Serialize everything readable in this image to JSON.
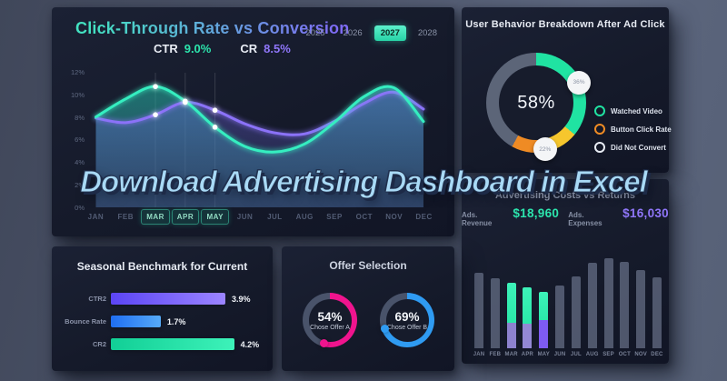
{
  "overlay": {
    "text": "Download Advertising Dashboard in Excel"
  },
  "panels": {
    "ctr_conversion": {
      "title": "Click-Through Rate vs Conversion",
      "years": [
        "2025",
        "2026",
        "2027",
        "2028"
      ],
      "selected_year": "2027",
      "stats": [
        {
          "label": "CTR",
          "value": "9.0%",
          "color": "#2ce5ad"
        },
        {
          "label": "CR",
          "value": "8.5%",
          "color": "#8f76f9"
        }
      ],
      "y_ticks": [
        "12%",
        "10%",
        "8%",
        "6%",
        "4%",
        "2%",
        "0%"
      ],
      "months": [
        "JAN",
        "FEB",
        "MAR",
        "APR",
        "MAY",
        "JUN",
        "JUL",
        "AUG",
        "SEP",
        "OCT",
        "NOV",
        "DEC"
      ],
      "highlighted_months": [
        "MAR",
        "APR",
        "MAY"
      ]
    },
    "behavior": {
      "title": "User Behavior Breakdown After Ad Click",
      "center_value": "58%",
      "legend": [
        {
          "label": "Watched Video",
          "color": "#20e3a2"
        },
        {
          "label": "Button Click Rate",
          "color": "#ef8b24"
        },
        {
          "label": "Did Not Convert",
          "color": "#e8ecf4"
        }
      ]
    },
    "costs": {
      "title": "Advertising Costs vs Returns",
      "stats": [
        {
          "label": "Ads. Revenue",
          "value": "$18,960",
          "color": "#2ce5ad"
        },
        {
          "label": "Ads. Expenses",
          "value": "$16,030",
          "color": "#8f76f9"
        }
      ]
    },
    "seasonal": {
      "title": "Seasonal Benchmark for Current"
    },
    "offer": {
      "title": "Offer Selection"
    }
  },
  "chart_data": [
    {
      "type": "line",
      "title": "Click-Through Rate vs Conversion",
      "x": [
        "JAN",
        "FEB",
        "MAR",
        "APR",
        "MAY",
        "JUN",
        "JUL",
        "AUG",
        "SEP",
        "OCT",
        "NOV",
        "DEC"
      ],
      "ylabel": "percent",
      "ylim": [
        0,
        12
      ],
      "grid": "vertical-on-marked-months-only",
      "legend_position": "top-left",
      "marked_months": [
        "MAR",
        "APR",
        "MAY"
      ],
      "series": [
        {
          "name": "CTR",
          "color": "#35eec0",
          "values": [
            8.0,
            9.6,
            10.7,
            9.4,
            7.1,
            5.4,
            4.9,
            5.6,
            7.5,
            9.8,
            10.6,
            7.6
          ]
        },
        {
          "name": "CR",
          "color": "#8b72f8",
          "values": [
            7.9,
            7.5,
            8.2,
            9.3,
            8.6,
            7.4,
            6.6,
            6.5,
            7.6,
            9.2,
            10.2,
            8.7
          ]
        }
      ]
    },
    {
      "type": "pie",
      "title": "User Behavior Breakdown After Ad Click",
      "center_label": "58%",
      "slices": [
        {
          "label": "Watched Video",
          "value": 36,
          "badge": "36%",
          "color": "#20e3a2"
        },
        {
          "label": "Button Click Rate",
          "value": 22,
          "badge": "22%",
          "color": "#ef8b24",
          "color2": "#f6c62d"
        },
        {
          "label": "Did Not Convert",
          "value": 42,
          "badge": null,
          "color": "#5c6578"
        }
      ]
    },
    {
      "type": "bar",
      "title": "Advertising Costs vs Returns",
      "categories": [
        "JAN",
        "FEB",
        "MAR",
        "APR",
        "MAY",
        "JUN",
        "JUL",
        "AUG",
        "SEP",
        "OCT",
        "NOV",
        "DEC"
      ],
      "values": [
        83,
        77,
        72,
        67,
        62,
        69,
        79,
        94,
        99,
        95,
        86,
        78
      ],
      "highlight": {
        "MAR": {
          "teal": 44,
          "purple": 28,
          "purple_color": "#8d82cf"
        },
        "APR": {
          "teal": 40,
          "purple": 27,
          "purple_color": "#9388d4"
        },
        "MAY": {
          "teal": 31,
          "purple": 31,
          "purple_color": "#7e5bf3"
        }
      },
      "teal_color": "#2be8a9"
    },
    {
      "type": "bar",
      "orientation": "horizontal",
      "title": "Seasonal Benchmark for Current",
      "categories": [
        "CTR2",
        "Bounce Rate",
        "CR2"
      ],
      "values": [
        3.9,
        1.7,
        4.2
      ],
      "value_labels": [
        "3.9%",
        "1.7%",
        "4.2%"
      ],
      "colors": [
        [
          "#5b45f5",
          "#9b84ff"
        ],
        [
          "#1f6ef2",
          "#56aaf8"
        ],
        [
          "#11cf96",
          "#3df2b9"
        ]
      ]
    },
    {
      "type": "pie",
      "title": "Offer Selection",
      "gauges": [
        {
          "label": "Chose Offer A",
          "value": 54,
          "value_label": "54%",
          "color": "#f0148e"
        },
        {
          "label": "Chose Offer B",
          "value": 69,
          "value_label": "69%",
          "color": "#2f9bf2"
        }
      ],
      "track_color": "#49536a"
    }
  ]
}
